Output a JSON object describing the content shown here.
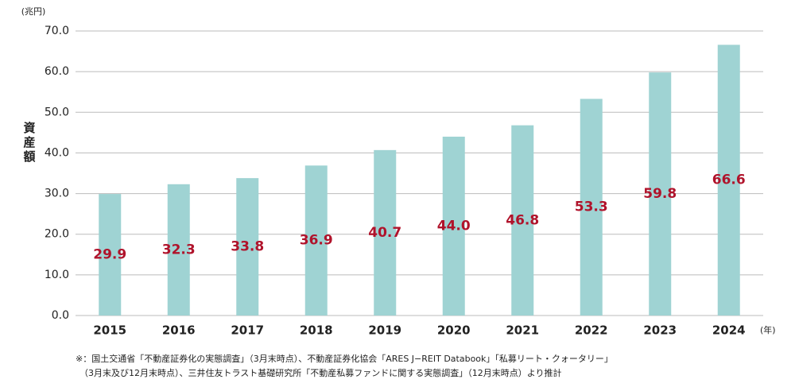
{
  "chart_data": {
    "type": "bar",
    "y_label": "資産額",
    "y_unit": "(兆円)",
    "x_unit": "(年)",
    "categories": [
      "2015",
      "2016",
      "2017",
      "2018",
      "2019",
      "2020",
      "2021",
      "2022",
      "2023",
      "2024"
    ],
    "values": [
      29.9,
      32.3,
      33.8,
      36.9,
      40.7,
      44.0,
      46.8,
      53.3,
      59.8,
      66.6
    ],
    "value_labels": [
      "29.9",
      "32.3",
      "33.8",
      "36.9",
      "40.7",
      "44.0",
      "46.8",
      "53.3",
      "59.8",
      "66.6"
    ],
    "color": "#9fd3d3",
    "label_color": "#b0132b",
    "ylim": [
      0,
      70
    ],
    "yticks": [
      {
        "value": 0,
        "label": "0.0"
      },
      {
        "value": 10,
        "label": "10.0"
      },
      {
        "value": 20,
        "label": "20.0"
      },
      {
        "value": 30,
        "label": "30.0"
      },
      {
        "value": 40,
        "label": "40.0"
      },
      {
        "value": 50,
        "label": "50.0"
      },
      {
        "value": 60,
        "label": "60.0"
      },
      {
        "value": 70,
        "label": "70.0"
      }
    ],
    "grid": true,
    "footnote": [
      "※：国土交通省「不動産証券化の実態調査」（3月末時点）、不動産証券化協会「ARES J−REIT Databook」「私募リート・クォータリー」",
      "（3月末及び12月末時点）、三井住友トラスト基礎研究所「不動産私募ファンドに関する実態調査」（12月末時点）より推計"
    ]
  }
}
